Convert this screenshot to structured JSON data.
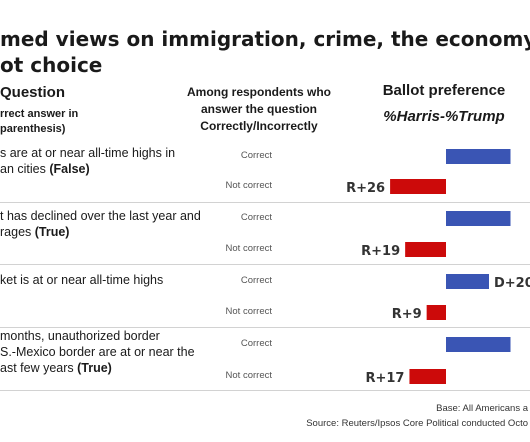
{
  "title_lines": [
    "med views on immigration, crime, the economy co",
    "ot choice"
  ],
  "headers": {
    "question": "Question",
    "question_sub_lines": [
      "rrect answer in",
      "parenthesis)"
    ],
    "respondents_lines": [
      "Among respondents who",
      "answer the question",
      "Correctly/Incorrectly"
    ],
    "ballot": "Ballot preference",
    "ballot_sub": "%Harris-%Trump"
  },
  "colors": {
    "harris": "#3a55b4",
    "trump": "#cc0a0a"
  },
  "chart_data": {
    "type": "bar",
    "groups": [
      "Correct",
      "Not correct"
    ],
    "questions": [
      {
        "lines": [
          {
            "t": "s are at or near all-time highs in"
          },
          {
            "t": "an cities ",
            "a": "(False)"
          }
        ],
        "correct": 30,
        "correct_label": "",
        "not_correct": -26,
        "not_correct_label": "R+26"
      },
      {
        "lines": [
          {
            "t": "t has declined over the last year and"
          },
          {
            "t": "rages ",
            "a": "(True)"
          }
        ],
        "correct": 30,
        "correct_label": "",
        "not_correct": -19,
        "not_correct_label": "R+19"
      },
      {
        "lines": [
          {
            "t": "ket is at or near all-time highs"
          }
        ],
        "correct": 20,
        "correct_label": "D+20",
        "not_correct": -9,
        "not_correct_label": "R+9"
      },
      {
        "lines": [
          {
            "t": "months, unauthorized border"
          },
          {
            "t": "S.-Mexico border are at or near the"
          },
          {
            "t": "ast few years ",
            "a": "(True)"
          }
        ],
        "correct": 30,
        "correct_label": "",
        "not_correct": -17,
        "not_correct_label": "R+17"
      }
    ]
  },
  "footer": {
    "base": "Base: All Americans a",
    "source": "Source: Reuters/Ipsos Core Political conducted Octo"
  }
}
